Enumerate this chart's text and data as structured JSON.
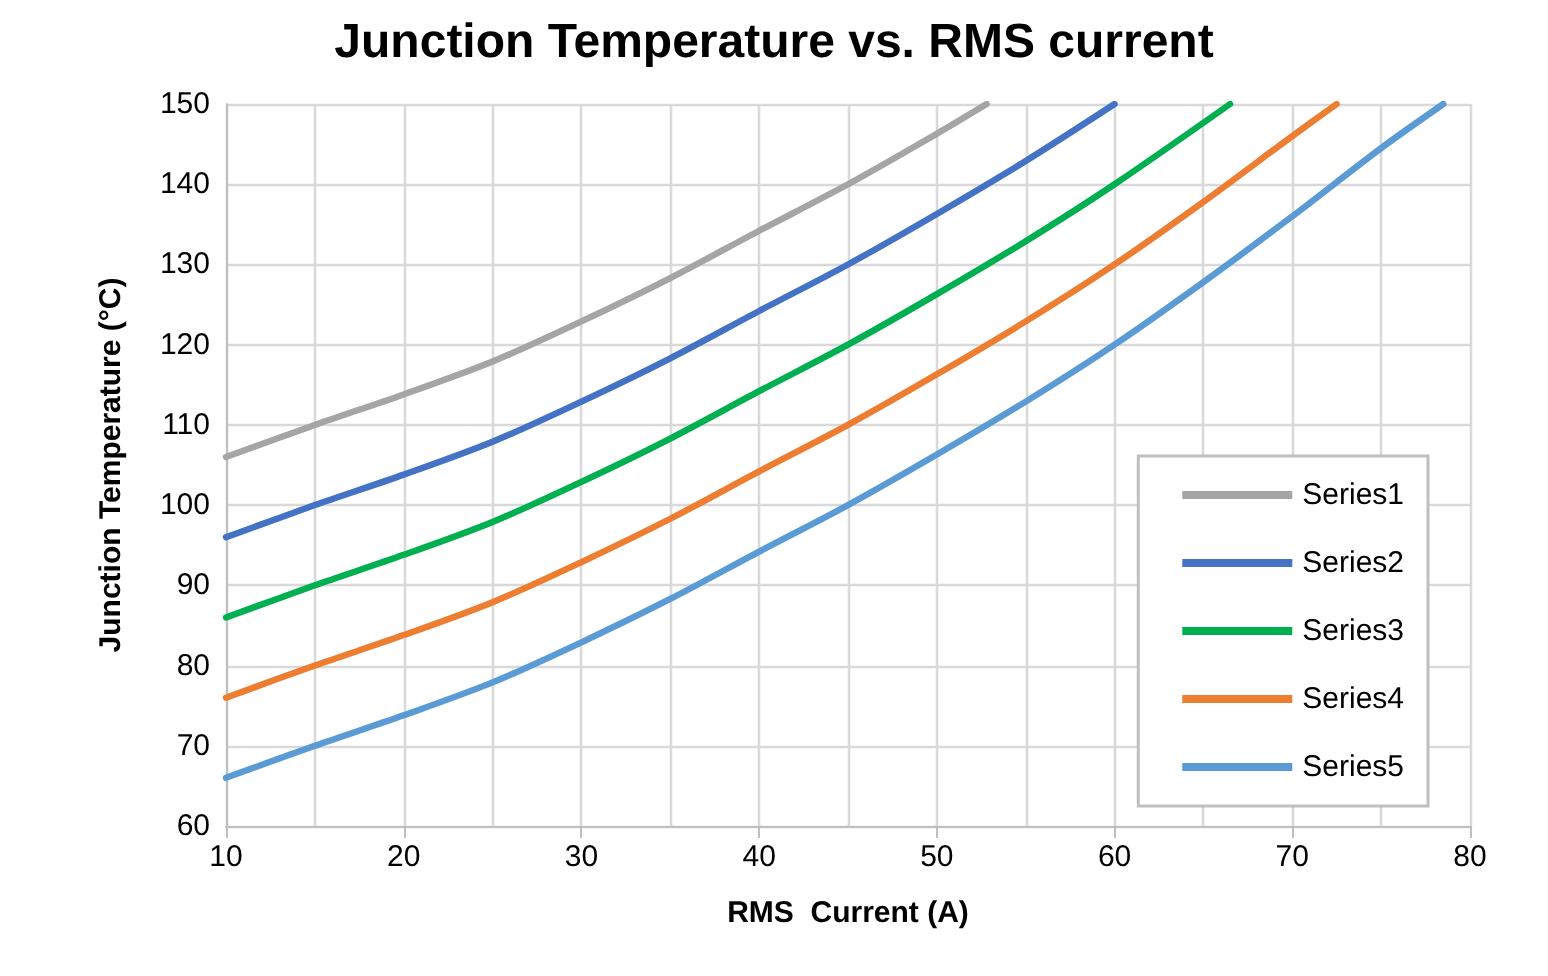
{
  "chart_data": {
    "type": "line",
    "title": "Junction Temperature vs. RMS current",
    "xlabel": "RMS  Current (A)",
    "ylabel": "Junction Temperature (°C)",
    "xlim": [
      10,
      80
    ],
    "xticks": [
      10,
      20,
      30,
      40,
      50,
      60,
      70,
      80
    ],
    "ylim": [
      60,
      150
    ],
    "yticks": [
      60,
      70,
      80,
      90,
      100,
      110,
      120,
      130,
      140,
      150
    ],
    "grid": true,
    "legend": "bottom right",
    "marker": "none",
    "line_style": "solid",
    "series": [
      {
        "name": "Series1",
        "color": "#a5a5a5",
        "x": [
          10,
          15,
          20,
          25,
          30,
          35,
          40,
          45,
          50,
          52.8
        ],
        "values": [
          106,
          110,
          113.8,
          117.9,
          122.9,
          128.3,
          134.2,
          140,
          146.3,
          150
        ]
      },
      {
        "name": "Series2",
        "color": "#4472c4",
        "x": [
          10,
          15,
          20,
          25,
          30,
          35,
          40,
          45,
          50,
          55,
          60
        ],
        "values": [
          96,
          100,
          103.8,
          107.9,
          112.9,
          118.3,
          124.2,
          130,
          136.3,
          142.9,
          150
        ]
      },
      {
        "name": "Series3",
        "color": "#00b050",
        "x": [
          10,
          15,
          20,
          25,
          30,
          35,
          40,
          45,
          50,
          55,
          60,
          66.5
        ],
        "values": [
          86,
          90,
          93.8,
          97.9,
          102.9,
          108.3,
          114.2,
          120,
          126.3,
          132.9,
          140,
          150
        ]
      },
      {
        "name": "Series4",
        "color": "#ed7d31",
        "x": [
          10,
          15,
          20,
          25,
          30,
          35,
          40,
          45,
          50,
          55,
          60,
          65,
          70,
          72.5
        ],
        "values": [
          76,
          80,
          83.8,
          87.9,
          92.9,
          98.3,
          104.2,
          110,
          116.3,
          122.9,
          130,
          137.8,
          146,
          150
        ]
      },
      {
        "name": "Series5",
        "color": "#5b9bd5",
        "x": [
          10,
          15,
          20,
          25,
          30,
          35,
          40,
          45,
          50,
          55,
          60,
          65,
          70,
          75,
          78.5
        ],
        "values": [
          66,
          70,
          73.8,
          77.9,
          82.9,
          88.3,
          94.2,
          100,
          106.3,
          112.9,
          120,
          127.8,
          136,
          144.5,
          150
        ]
      }
    ]
  }
}
